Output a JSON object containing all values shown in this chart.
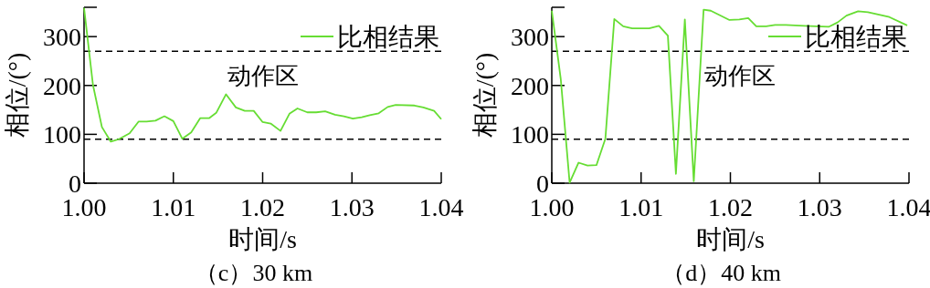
{
  "chart_data": [
    {
      "type": "line",
      "title": "（c）30 km",
      "xlabel": "时间/s",
      "ylabel": "相位/(°)",
      "xlim": [
        1.0,
        1.04
      ],
      "xticks": [
        {
          "value": 1.0,
          "label": "1.00"
        },
        1.01,
        1.02,
        1.03,
        1.04
      ],
      "ylim": [
        0,
        360
      ],
      "yticks": [
        0,
        100,
        200,
        300
      ],
      "grid": false,
      "legend": "top right",
      "marker": "none",
      "line_style": "solid",
      "ref_lines": [
        {
          "axis": "y",
          "value": 90,
          "line_style": "dashed",
          "color": "#000000"
        },
        {
          "axis": "y",
          "value": 270,
          "line_style": "dashed",
          "color": "#000000"
        }
      ],
      "annotations": [
        "动作区"
      ],
      "series": [
        {
          "name": "比相结果",
          "color": "#66dd33",
          "x": [
            1.0,
            1.001,
            1.002,
            1.003,
            1.0039,
            1.0051,
            1.0061,
            1.007,
            1.008,
            1.009,
            1.01,
            1.011,
            1.012,
            1.013,
            1.014,
            1.0148,
            1.0159,
            1.017,
            1.018,
            1.019,
            1.02,
            1.0209,
            1.022,
            1.023,
            1.0239,
            1.025,
            1.026,
            1.027,
            1.0281,
            1.0291,
            1.0301,
            1.0311,
            1.032,
            1.033,
            1.034,
            1.0349,
            1.037,
            1.038,
            1.0392,
            1.04
          ],
          "values": [
            359,
            201,
            115,
            85,
            90,
            102,
            126,
            126,
            128,
            137,
            127,
            91,
            104,
            133,
            133,
            144,
            182,
            155,
            148,
            148,
            125,
            122,
            107,
            142,
            153,
            145,
            145,
            147,
            140,
            137,
            132,
            135,
            139,
            143,
            156,
            160,
            159,
            155,
            148,
            131
          ]
        }
      ]
    },
    {
      "type": "line",
      "title": "（d）40 km",
      "xlabel": "时间/s",
      "ylabel": "相位/(°)",
      "xlim": [
        1.0,
        1.04
      ],
      "xticks": [
        {
          "value": 1.0,
          "label": "1.00"
        },
        1.01,
        1.02,
        1.03,
        1.04
      ],
      "ylim": [
        0,
        360
      ],
      "yticks": [
        0,
        100,
        200,
        300
      ],
      "grid": false,
      "legend": "top right",
      "marker": "none",
      "line_style": "solid",
      "ref_lines": [
        {
          "axis": "y",
          "value": 90,
          "line_style": "dashed",
          "color": "#000000"
        },
        {
          "axis": "y",
          "value": 270,
          "line_style": "dashed",
          "color": "#000000"
        }
      ],
      "annotations": [
        "动作区"
      ],
      "series": [
        {
          "name": "比相结果",
          "color": "#66dd33",
          "x": [
            1.0,
            1.001,
            1.002,
            1.003,
            1.004,
            1.005,
            1.006,
            1.007,
            1.008,
            1.009,
            1.0109,
            1.012,
            1.013,
            1.0139,
            1.0149,
            1.0159,
            1.017,
            1.0178,
            1.0199,
            1.021,
            1.022,
            1.0229,
            1.024,
            1.025,
            1.0262,
            1.0283,
            1.031,
            1.032,
            1.033,
            1.0343,
            1.0354,
            1.0378,
            1.0398
          ],
          "values": [
            353,
            214,
            1,
            42,
            36,
            37,
            91,
            336,
            321,
            317,
            317,
            322,
            302,
            19,
            335,
            4,
            355,
            353,
            334,
            335,
            338,
            321,
            321,
            324,
            324,
            322,
            320,
            329,
            343,
            352,
            350,
            340,
            323
          ]
        }
      ]
    }
  ]
}
